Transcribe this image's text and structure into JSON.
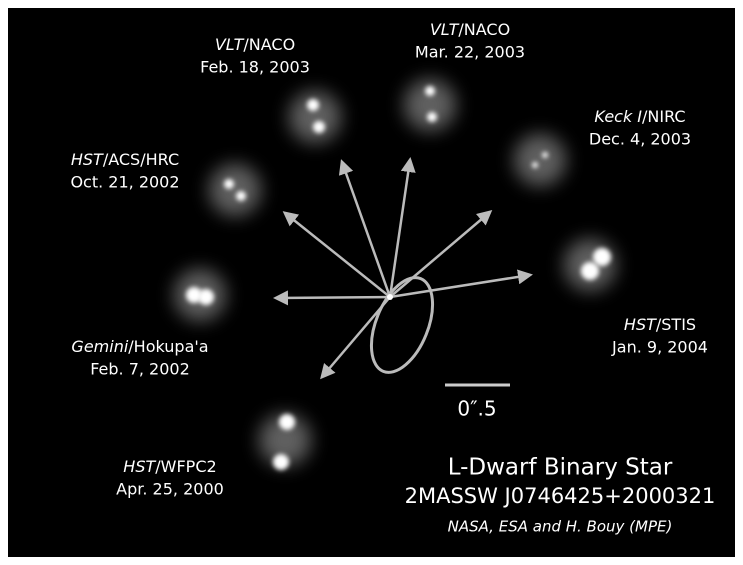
{
  "title": "L-Dwarf Binary Star",
  "subtitle": "2MASSW J0746425+2000321",
  "credit": "NASA, ESA and H. Bouy (MPE)",
  "scale_label": "0″.5",
  "observations": [
    {
      "telescope": "HST",
      "instrument": "/ACS/HRC",
      "date": "Oct. 21, 2002"
    },
    {
      "telescope": "VLT",
      "instrument": "/NACO",
      "date": "Feb. 18, 2003"
    },
    {
      "telescope": "VLT",
      "instrument": "/NACO",
      "date": "Mar. 22, 2003"
    },
    {
      "telescope": "Keck I",
      "instrument": "/NIRC",
      "date": "Dec. 4, 2003"
    },
    {
      "telescope": "HST",
      "instrument": "/STIS",
      "date": "Jan. 9, 2004"
    },
    {
      "telescope": "Gemini",
      "instrument": "/Hokupa'a",
      "date": "Feb. 7, 2002"
    },
    {
      "telescope": "HST",
      "instrument": "/WFPC2",
      "date": "Apr. 25, 2000"
    }
  ]
}
